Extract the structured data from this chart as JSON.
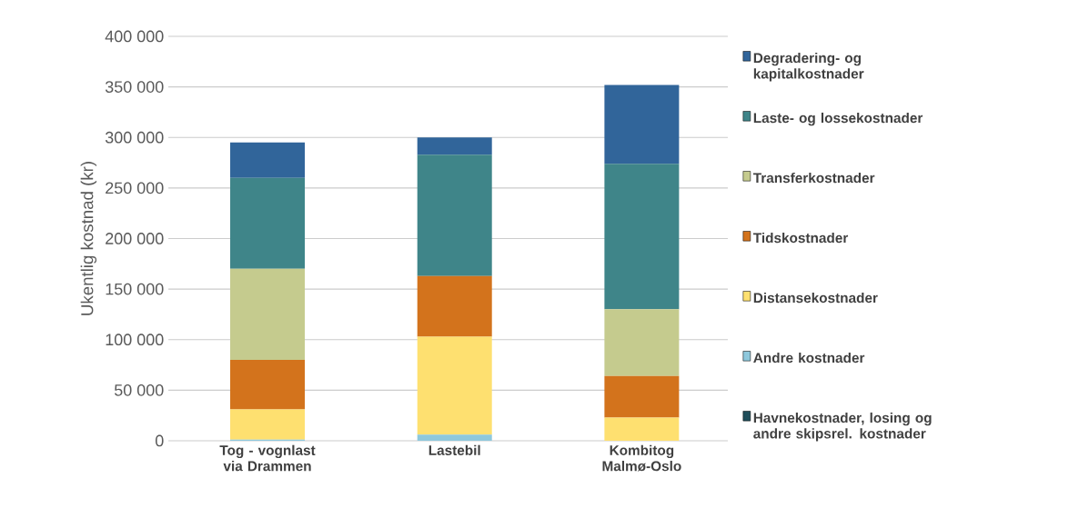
{
  "chart_data": {
    "type": "bar",
    "stacked": true,
    "ylabel": "Ukentlig kostnad (kr)",
    "categories": [
      "Tog - vognlast via Drammen",
      "Lastebil",
      "Kombitog Malmø-Oslo"
    ],
    "series": [
      {
        "name": "Havnekostnader, losing og andre skipsrel. kostnader",
        "color": "#1f4e5a",
        "values": [
          0,
          0,
          0
        ]
      },
      {
        "name": "Andre kostnader",
        "color": "#8ec8dc",
        "values": [
          1000,
          6000,
          0
        ]
      },
      {
        "name": "Distansekostnader",
        "color": "#fee070",
        "values": [
          30000,
          97000,
          23000
        ]
      },
      {
        "name": "Tidskostnader",
        "color": "#d3731c",
        "values": [
          49000,
          60000,
          41000
        ]
      },
      {
        "name": "Transferkostnader",
        "color": "#c5cb8e",
        "values": [
          90000,
          0,
          66000
        ]
      },
      {
        "name": "Laste- og lossekostnader",
        "color": "#3f8589",
        "values": [
          90000,
          120000,
          144000
        ]
      },
      {
        "name": "Degradering- og kapitalkostnader",
        "color": "#31659a",
        "values": [
          35000,
          17000,
          78000
        ]
      }
    ],
    "ylim": [
      0,
      400000
    ],
    "yticks": [
      0,
      {
        "value": 50000,
        "label": "50 000"
      },
      {
        "value": 100000,
        "label": "100 000"
      },
      {
        "value": 150000,
        "label": "150 000"
      },
      {
        "value": 200000,
        "label": "200 000"
      },
      {
        "value": 250000,
        "label": "250 000"
      },
      {
        "value": 300000,
        "label": "300 000"
      },
      {
        "value": 350000,
        "label": "350 000"
      },
      {
        "value": 400000,
        "label": "400 000"
      }
    ],
    "grid": "y",
    "legend": "right"
  }
}
